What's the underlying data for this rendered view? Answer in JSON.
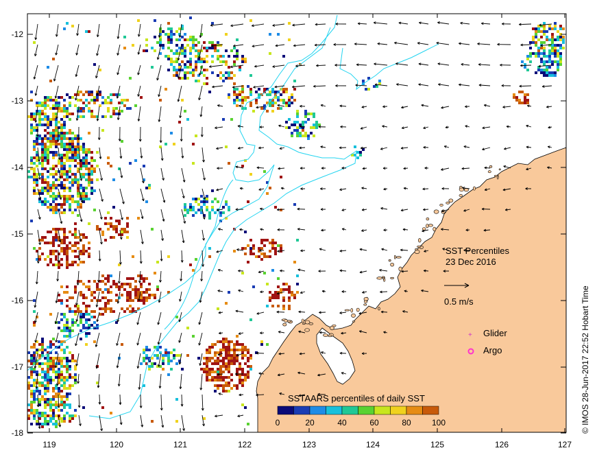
{
  "map": {
    "title_line1": "SST Percentiles",
    "title_line2": "23 Dec 2016",
    "speed_label": "0.5 m/s",
    "legend": {
      "glider_label": "Glider",
      "argo_label": "Argo",
      "glider_color": "#cc33cc",
      "argo_color": "#ff33cc"
    },
    "colorbar": {
      "title": "SSTAARS percentiles of daily SST",
      "tick_labels": [
        "0",
        "20",
        "40",
        "60",
        "80",
        "100"
      ],
      "colors": [
        "#0a0a78",
        "#1a3cb4",
        "#1e8ce6",
        "#18c0dc",
        "#20c896",
        "#5ad232",
        "#c8e61e",
        "#f0d21e",
        "#e68c14",
        "#c85a0a",
        "#a01414"
      ]
    },
    "lon_ticks": [
      "119",
      "120",
      "121",
      "122",
      "123",
      "124",
      "125",
      "126",
      "127"
    ],
    "lat_ticks": [
      "-12",
      "-13",
      "-14",
      "-15",
      "-16",
      "-17",
      "-18"
    ],
    "credit": "© IMOS 28-Jun-2017 22:52 Hobart Time",
    "land_color": "#f9c99b",
    "contour_color": "#22d4f0"
  }
}
